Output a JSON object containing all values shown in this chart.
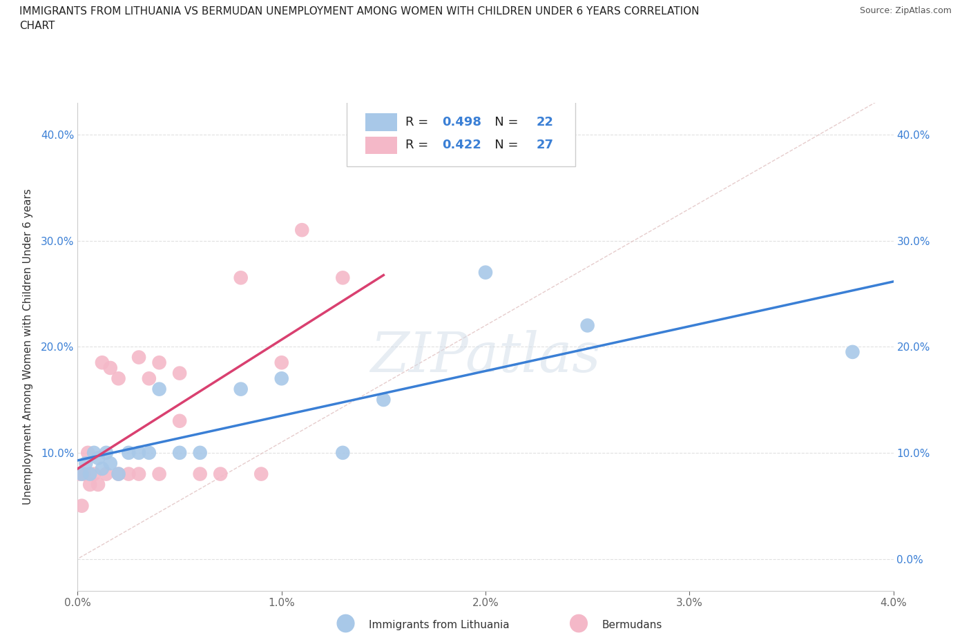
{
  "title": "IMMIGRANTS FROM LITHUANIA VS BERMUDAN UNEMPLOYMENT AMONG WOMEN WITH CHILDREN UNDER 6 YEARS CORRELATION\nCHART",
  "source": "Source: ZipAtlas.com",
  "ylabel": "Unemployment Among Women with Children Under 6 years",
  "xlim": [
    0.0,
    0.04
  ],
  "ylim": [
    -0.03,
    0.43
  ],
  "xticks": [
    0.0,
    0.01,
    0.02,
    0.03,
    0.04
  ],
  "xtick_labels": [
    "0.0%",
    "1.0%",
    "2.0%",
    "3.0%",
    "4.0%"
  ],
  "yticks": [
    0.0,
    0.1,
    0.2,
    0.3,
    0.4
  ],
  "ytick_labels": [
    "0.0%",
    "10.0%",
    "20.0%",
    "30.0%",
    "40.0%"
  ],
  "blue_R": 0.498,
  "blue_N": 22,
  "pink_R": 0.422,
  "pink_N": 27,
  "blue_color": "#a8c8e8",
  "pink_color": "#f4b8c8",
  "blue_line_color": "#3a7fd5",
  "pink_line_color": "#d94070",
  "diagonal_color": "#d0d0d0",
  "watermark": "ZIPatlas",
  "blue_points_x": [
    0.0002,
    0.0004,
    0.0006,
    0.0008,
    0.001,
    0.0012,
    0.0014,
    0.0016,
    0.002,
    0.0025,
    0.003,
    0.0035,
    0.004,
    0.005,
    0.006,
    0.008,
    0.01,
    0.013,
    0.015,
    0.02,
    0.025,
    0.038
  ],
  "blue_points_y": [
    0.08,
    0.09,
    0.08,
    0.1,
    0.095,
    0.085,
    0.1,
    0.09,
    0.08,
    0.1,
    0.1,
    0.1,
    0.16,
    0.1,
    0.1,
    0.16,
    0.17,
    0.1,
    0.15,
    0.27,
    0.22,
    0.195
  ],
  "pink_points_x": [
    0.0001,
    0.0002,
    0.0003,
    0.0005,
    0.0006,
    0.0008,
    0.001,
    0.0012,
    0.0014,
    0.0016,
    0.002,
    0.002,
    0.0025,
    0.003,
    0.003,
    0.0035,
    0.004,
    0.004,
    0.005,
    0.005,
    0.006,
    0.007,
    0.008,
    0.009,
    0.01,
    0.011,
    0.013
  ],
  "pink_points_y": [
    0.08,
    0.05,
    0.08,
    0.1,
    0.07,
    0.08,
    0.07,
    0.185,
    0.08,
    0.18,
    0.08,
    0.17,
    0.08,
    0.08,
    0.19,
    0.17,
    0.08,
    0.185,
    0.13,
    0.175,
    0.08,
    0.08,
    0.265,
    0.08,
    0.185,
    0.31,
    0.265
  ],
  "legend_label_blue": "Immigrants from Lithuania",
  "legend_label_pink": "Bermudans",
  "background_color": "#ffffff",
  "grid_color": "#e0e0e0"
}
